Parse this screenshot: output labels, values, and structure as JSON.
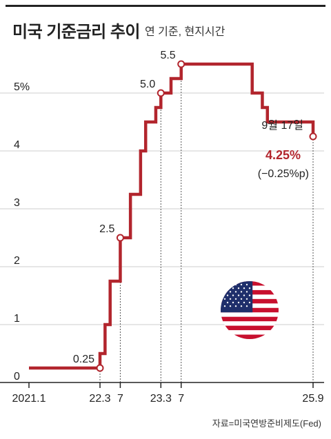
{
  "header": {
    "title": "미국 기준금리 추이",
    "subtitle": "연 기준, 현지시간"
  },
  "source": "자료=미국연방준비제도(Fed)",
  "colors": {
    "line": "#b2252d",
    "highlight": "#b2252d",
    "grid": "#cccccc",
    "axis": "#222222"
  },
  "chart_data": {
    "type": "line",
    "step": true,
    "ylim": [
      0,
      5.5
    ],
    "yticks": [
      {
        "value": 0,
        "label": "0"
      },
      {
        "value": 1,
        "label": "1"
      },
      {
        "value": 2,
        "label": "2"
      },
      {
        "value": 3,
        "label": "3"
      },
      {
        "value": 4,
        "label": "4"
      },
      {
        "value": 5,
        "label": "5%"
      }
    ],
    "xticks": [
      {
        "month": 0,
        "label": "2021.1"
      },
      {
        "month": 14,
        "label": "22.3"
      },
      {
        "month": 18,
        "label": "7"
      },
      {
        "month": 26,
        "label": "23.3"
      },
      {
        "month": 30,
        "label": "7"
      },
      {
        "month": 56,
        "label": "25.9"
      }
    ],
    "xlim": [
      0,
      56
    ],
    "series": [
      {
        "points": [
          {
            "month": 0,
            "value": 0.25
          },
          {
            "month": 14,
            "value": 0.5
          },
          {
            "month": 15,
            "value": 1.0
          },
          {
            "month": 16,
            "value": 1.75
          },
          {
            "month": 18,
            "value": 2.5
          },
          {
            "month": 20,
            "value": 3.25
          },
          {
            "month": 22,
            "value": 4.0
          },
          {
            "month": 23,
            "value": 4.5
          },
          {
            "month": 25,
            "value": 4.75
          },
          {
            "month": 26,
            "value": 5.0
          },
          {
            "month": 28,
            "value": 5.25
          },
          {
            "month": 30,
            "value": 5.5
          },
          {
            "month": 44,
            "value": 5.0
          },
          {
            "month": 46,
            "value": 4.75
          },
          {
            "month": 47,
            "value": 4.5
          },
          {
            "month": 56,
            "value": 4.25
          }
        ]
      }
    ],
    "markers": [
      {
        "month": 14,
        "value": 0.25,
        "label": "0.25"
      },
      {
        "month": 18,
        "value": 2.5,
        "label": "2.5"
      },
      {
        "month": 26,
        "value": 5.0,
        "label": "5.0"
      },
      {
        "month": 30,
        "value": 5.5,
        "label": "5.5"
      },
      {
        "month": 56,
        "value": 4.25,
        "label": ""
      }
    ],
    "callout": {
      "date": "9월 17일",
      "value": "4.25%",
      "change": "(−0.25%p)"
    }
  }
}
